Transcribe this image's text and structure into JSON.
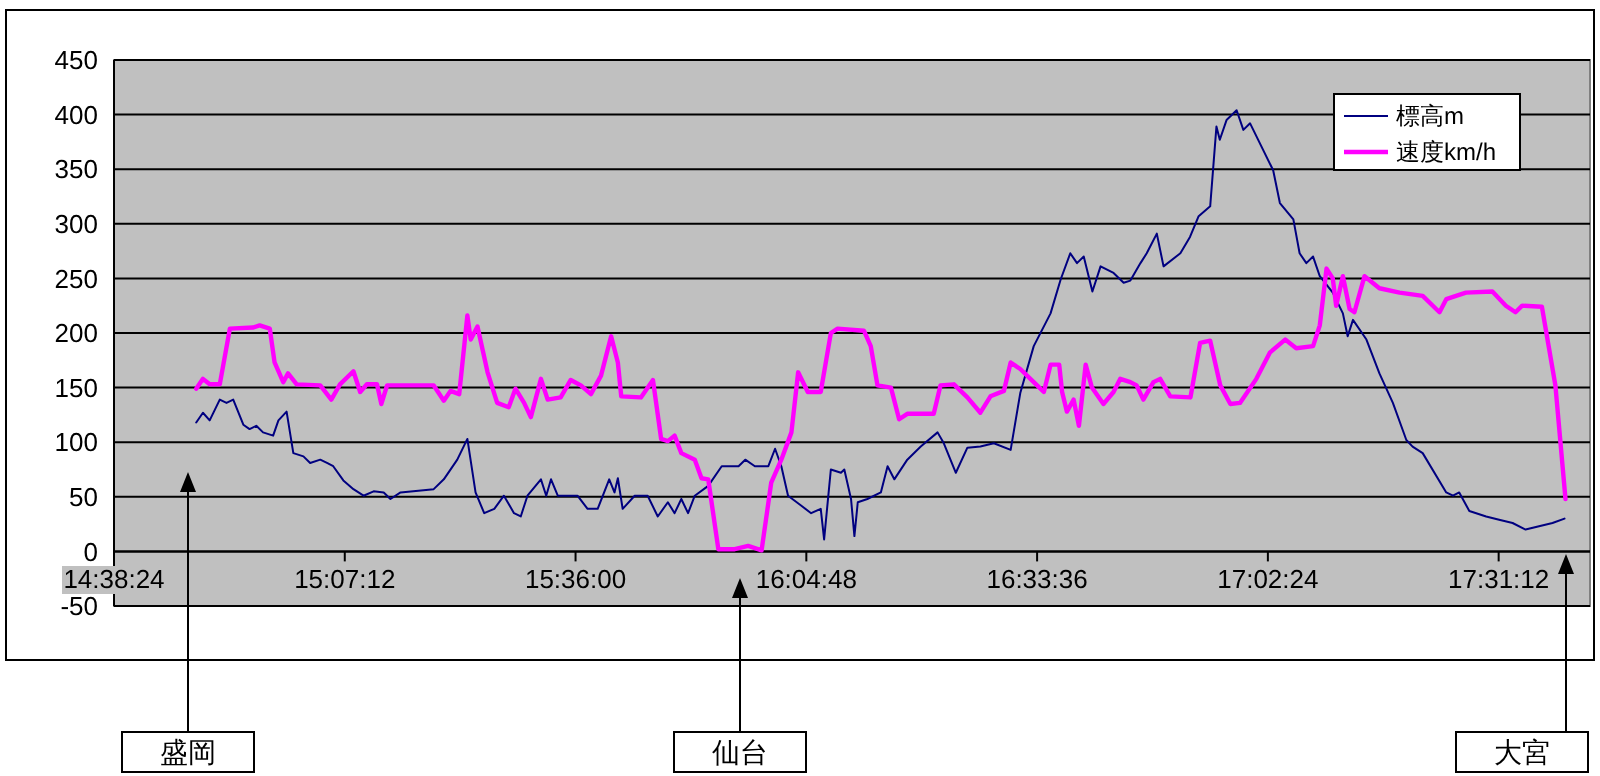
{
  "chart_data": {
    "type": "line",
    "xlim": [
      14.64,
      17.71
    ],
    "xticks": [
      {
        "value": 14.64,
        "label": "14:38:24"
      },
      {
        "value": 15.12,
        "label": "15:07:12"
      },
      {
        "value": 15.6,
        "label": "15:36:00"
      },
      {
        "value": 16.08,
        "label": "16:04:48"
      },
      {
        "value": 16.56,
        "label": "16:33:36"
      },
      {
        "value": 17.04,
        "label": "17:02:24"
      },
      {
        "value": 17.52,
        "label": "17:31:12"
      }
    ],
    "ylim": [
      -50,
      450
    ],
    "yticks": [
      -50,
      0,
      50,
      100,
      150,
      200,
      250,
      300,
      350,
      400,
      450
    ],
    "grid": "y",
    "legend": "top right",
    "marker": "none",
    "line_style": "solid",
    "series": [
      {
        "name": "標高m",
        "color": "#000080",
        "x": [
          14.811,
          14.825,
          14.839,
          14.86,
          14.874,
          14.888,
          14.909,
          14.922,
          14.936,
          14.95,
          14.971,
          14.982,
          14.999,
          15.013,
          15.034,
          15.048,
          15.069,
          15.083,
          15.096,
          15.117,
          15.138,
          15.159,
          15.18,
          15.201,
          15.215,
          15.236,
          15.305,
          15.326,
          15.354,
          15.375,
          15.392,
          15.41,
          15.431,
          15.451,
          15.472,
          15.486,
          15.5,
          15.528,
          15.539,
          15.549,
          15.563,
          15.604,
          15.625,
          15.646,
          15.67,
          15.681,
          15.688,
          15.698,
          15.723,
          15.75,
          15.771,
          15.792,
          15.806,
          15.82,
          15.834,
          15.848,
          15.876,
          15.904,
          15.939,
          15.953,
          15.973,
          16.001,
          16.015,
          16.028,
          16.042,
          16.069,
          16.09,
          16.11,
          16.117,
          16.131,
          16.152,
          16.159,
          16.173,
          16.18,
          16.187,
          16.207,
          16.235,
          16.249,
          16.263,
          16.29,
          16.318,
          16.353,
          16.366,
          16.391,
          16.415,
          16.442,
          16.47,
          16.505,
          16.525,
          16.553,
          16.588,
          16.609,
          16.629,
          16.643,
          16.657,
          16.675,
          16.692,
          16.719,
          16.74,
          16.754,
          16.775,
          16.788,
          16.809,
          16.823,
          16.858,
          16.878,
          16.896,
          16.92,
          16.933,
          16.94,
          16.954,
          16.975,
          16.989,
          17.003,
          17.051,
          17.065,
          17.093,
          17.106,
          17.12,
          17.134,
          17.148,
          17.175,
          17.196,
          17.206,
          17.217,
          17.245,
          17.272,
          17.3,
          17.328,
          17.341,
          17.362,
          17.411,
          17.425,
          17.438,
          17.459,
          17.494,
          17.521,
          17.549,
          17.576,
          17.604,
          17.632,
          17.657
        ],
        "values": [
          118,
          127,
          120,
          139,
          136,
          139,
          116,
          112,
          115,
          109,
          106,
          120,
          128,
          90,
          87,
          81,
          84,
          81,
          78,
          65,
          57,
          51,
          55,
          54,
          48,
          54,
          57,
          66,
          84,
          103,
          54,
          35,
          39,
          51,
          35,
          32,
          51,
          66,
          51,
          66,
          51,
          51,
          39,
          39,
          66,
          54,
          67,
          39,
          51,
          51,
          32,
          45,
          35,
          48,
          35,
          51,
          60,
          78,
          78,
          84,
          78,
          78,
          94,
          78,
          51,
          42,
          35,
          39,
          11,
          75,
          72,
          75,
          48,
          14,
          45,
          48,
          54,
          78,
          66,
          84,
          96,
          109,
          99,
          72,
          95,
          96,
          99,
          93,
          145,
          188,
          218,
          249,
          273,
          264,
          270,
          238,
          261,
          255,
          246,
          248,
          264,
          273,
          291,
          261,
          273,
          288,
          307,
          316,
          389,
          377,
          395,
          404,
          386,
          392,
          349,
          319,
          304,
          273,
          264,
          270,
          252,
          237,
          218,
          197,
          212,
          194,
          163,
          136,
          102,
          96,
          90,
          54,
          51,
          54,
          37,
          32,
          29,
          26,
          20,
          23,
          26,
          30
        ]
      },
      {
        "name": "速度km/h",
        "color": "#ff00ff",
        "x": [
          14.811,
          14.825,
          14.839,
          14.86,
          14.881,
          14.929,
          14.943,
          14.964,
          14.974,
          14.992,
          15.002,
          15.02,
          15.069,
          15.092,
          15.11,
          15.138,
          15.152,
          15.166,
          15.187,
          15.196,
          15.208,
          15.305,
          15.326,
          15.34,
          15.358,
          15.375,
          15.382,
          15.396,
          15.417,
          15.437,
          15.461,
          15.475,
          15.493,
          15.507,
          15.528,
          15.542,
          15.569,
          15.59,
          15.611,
          15.632,
          15.653,
          15.674,
          15.688,
          15.695,
          15.736,
          15.761,
          15.778,
          15.792,
          15.806,
          15.82,
          15.848,
          15.862,
          15.876,
          15.897,
          15.931,
          15.959,
          15.987,
          16.007,
          16.028,
          16.049,
          16.063,
          16.083,
          16.11,
          16.131,
          16.145,
          16.2,
          16.214,
          16.228,
          16.256,
          16.273,
          16.29,
          16.345,
          16.359,
          16.387,
          16.415,
          16.442,
          16.463,
          16.491,
          16.505,
          16.525,
          16.553,
          16.574,
          16.588,
          16.606,
          16.612,
          16.622,
          16.636,
          16.647,
          16.661,
          16.674,
          16.698,
          16.719,
          16.733,
          16.754,
          16.767,
          16.781,
          16.802,
          16.816,
          16.837,
          16.879,
          16.899,
          16.92,
          16.941,
          16.962,
          16.982,
          17.016,
          17.044,
          17.076,
          17.099,
          17.134,
          17.148,
          17.162,
          17.175,
          17.182,
          17.196,
          17.21,
          17.22,
          17.241,
          17.272,
          17.314,
          17.362,
          17.397,
          17.411,
          17.452,
          17.507,
          17.535,
          17.555,
          17.569,
          17.61,
          17.624,
          17.638,
          17.659
        ],
        "values": [
          149,
          158,
          153,
          153,
          204,
          205,
          207,
          204,
          173,
          155,
          163,
          153,
          152,
          139,
          153,
          165,
          146,
          153,
          153,
          135,
          152,
          152,
          138,
          147,
          144,
          216,
          194,
          206,
          164,
          136,
          132,
          149,
          136,
          123,
          158,
          139,
          141,
          157,
          152,
          144,
          161,
          197,
          173,
          142,
          141,
          157,
          103,
          101,
          106,
          90,
          84,
          67,
          66,
          2,
          2,
          5,
          1,
          63,
          84,
          109,
          164,
          146,
          146,
          200,
          204,
          202,
          188,
          152,
          150,
          121,
          126,
          126,
          152,
          153,
          141,
          127,
          142,
          147,
          173,
          167,
          155,
          146,
          171,
          171,
          146,
          128,
          139,
          115,
          171,
          150,
          135,
          146,
          158,
          155,
          152,
          139,
          155,
          158,
          142,
          141,
          191,
          193,
          152,
          135,
          136,
          158,
          182,
          194,
          186,
          188,
          207,
          259,
          250,
          225,
          252,
          222,
          219,
          252,
          241,
          237,
          234,
          219,
          231,
          237,
          238,
          225,
          219,
          225,
          224,
          188,
          152,
          48
        ]
      }
    ],
    "annotations": [
      "盛岡",
      "仙台",
      "大宮"
    ]
  }
}
